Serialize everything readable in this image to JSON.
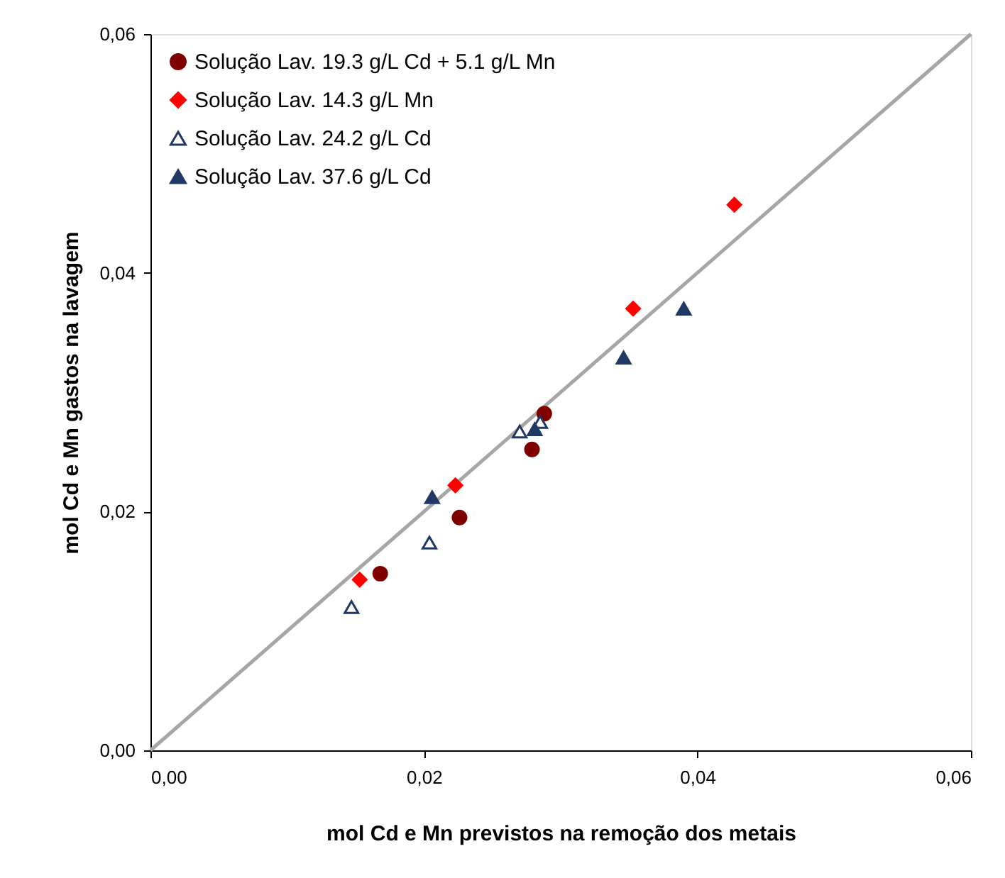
{
  "chart_data": {
    "type": "scatter",
    "xlabel": "mol Cd e Mn previstos na remoção dos metais",
    "ylabel": "mol Cd e Mn gastos na lavagem",
    "xlim": [
      0,
      0.06
    ],
    "ylim": [
      0,
      0.06
    ],
    "xticks": [
      {
        "value": 0,
        "label": "0,00"
      },
      {
        "value": 0.02,
        "label": "0,02"
      },
      {
        "value": 0.04,
        "label": "0,04"
      },
      {
        "value": 0.06,
        "label": "0,06"
      }
    ],
    "yticks": [
      {
        "value": 0,
        "label": "0,00"
      },
      {
        "value": 0.02,
        "label": "0,02"
      },
      {
        "value": 0.04,
        "label": "0,04"
      },
      {
        "value": 0.06,
        "label": "0,06"
      }
    ],
    "grid": false,
    "legend": "top left",
    "series": [
      {
        "name": "Solução Lav. 19.3 g/L Cd + 5.1 g/L Mn",
        "color": "#800000",
        "marker": "circle",
        "x": [
          0.0168,
          0.0226,
          0.0279,
          0.0288
        ],
        "values": [
          0.0148,
          0.0195,
          0.0252,
          0.0282
        ]
      },
      {
        "name": "Solução Lav. 14.3 g/L Mn",
        "color": "#ff0000",
        "marker": "diamond",
        "x": [
          0.0153,
          0.0223,
          0.0353,
          0.0427
        ],
        "values": [
          0.0143,
          0.0222,
          0.037,
          0.0457
        ]
      },
      {
        "name": "Solução Lav. 24.2 g/L Cd",
        "color": "#1f3864",
        "marker": "triangle-open",
        "x": [
          0.0147,
          0.0204,
          0.027,
          0.0285
        ],
        "values": [
          0.012,
          0.0174,
          0.0267,
          0.0275
        ]
      },
      {
        "name": "Solução Lav. 37.6 g/L Cd",
        "color": "#1f3864",
        "marker": "triangle",
        "x": [
          0.0206,
          0.0281,
          0.0346,
          0.039
        ],
        "values": [
          0.0212,
          0.0269,
          0.0329,
          0.037
        ]
      },
      {
        "type": "line",
        "color": "#a6a6a6",
        "marker": "none",
        "line_style": "solid",
        "x": [
          0,
          0.06
        ],
        "values": [
          0,
          0.06
        ]
      }
    ]
  }
}
